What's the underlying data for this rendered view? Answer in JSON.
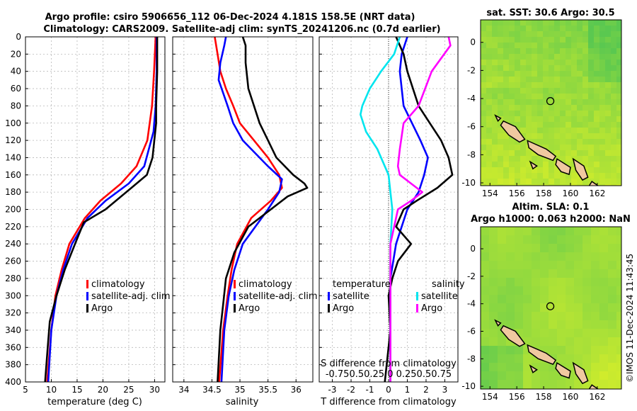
{
  "title_line1": "Argo profile: csiro 5906656_112 06-Dec-2024 4.181S 158.5E (NRT data)",
  "title_line2": "Climatology: CARS2009. Satellite-adj clim: synTS_20241206.nc (0.7d earlier)",
  "credit": "©IMOS 11-Dec-2024 11:43:45",
  "colors": {
    "red": "#ff0000",
    "blue": "#0000ff",
    "black": "#000000",
    "cyan": "#00e5ee",
    "magenta": "#ff00ff",
    "map_green": "#7ad63a",
    "map_yellow": "#c6ef2e",
    "land": "#f0c8a0"
  },
  "chart_data": [
    {
      "type": "line",
      "id": "temperature",
      "xlabel": "temperature (deg C)",
      "xlim": [
        5,
        32
      ],
      "ylim": [
        400,
        0
      ],
      "xticks": [
        "5",
        "10",
        "15",
        "20",
        "25",
        "30"
      ],
      "yticks": [
        "0",
        "20",
        "40",
        "60",
        "80",
        "100",
        "120",
        "140",
        "160",
        "180",
        "200",
        "220",
        "240",
        "260",
        "280",
        "300",
        "320",
        "340",
        "360",
        "380",
        "400"
      ],
      "legend": [
        "climatology",
        "satellite-adj. clim",
        "Argo"
      ],
      "series": [
        {
          "name": "climatology",
          "color": "red",
          "depth": [
            0,
            40,
            80,
            120,
            150,
            170,
            190,
            210,
            240,
            270,
            300,
            340,
            400
          ],
          "values": [
            30.2,
            29.9,
            29.5,
            28.6,
            26.5,
            23.5,
            19.5,
            16.5,
            13.5,
            12,
            10.8,
            10,
            9.2
          ]
        },
        {
          "name": "satellite-adj. clim",
          "color": "blue",
          "depth": [
            0,
            40,
            80,
            110,
            150,
            170,
            190,
            210,
            240,
            270,
            300,
            340,
            400
          ],
          "values": [
            30.4,
            30.4,
            30.2,
            29.8,
            28,
            25,
            20.5,
            17,
            14,
            12.3,
            11,
            10,
            9.4
          ]
        },
        {
          "name": "Argo",
          "color": "black",
          "depth": [
            0,
            40,
            80,
            100,
            140,
            160,
            175,
            200,
            215,
            240,
            270,
            300,
            330,
            360,
            400
          ],
          "values": [
            30.5,
            30.5,
            30.3,
            30.3,
            29.6,
            28.5,
            25.5,
            20.5,
            16.3,
            14.6,
            12.6,
            11,
            9.7,
            9.3,
            8.8
          ]
        }
      ]
    },
    {
      "type": "line",
      "id": "salinity",
      "xlabel": "salinity",
      "xlim": [
        33.8,
        36.3
      ],
      "ylim": [
        400,
        0
      ],
      "xticks": [
        "34",
        "34.5",
        "35",
        "35.5",
        "36"
      ],
      "legend": [
        "climatology",
        "satellite-adj. clim",
        "Argo"
      ],
      "series": [
        {
          "name": "climatology",
          "color": "red",
          "depth": [
            0,
            20,
            40,
            60,
            80,
            100,
            120,
            140,
            160,
            175,
            190,
            210,
            240,
            270,
            300,
            340,
            400
          ],
          "values": [
            34.55,
            34.6,
            34.65,
            34.75,
            34.88,
            35.0,
            35.25,
            35.5,
            35.7,
            35.75,
            35.55,
            35.2,
            34.95,
            34.85,
            34.78,
            34.7,
            34.63
          ]
        },
        {
          "name": "satellite-adj. clim",
          "color": "blue",
          "depth": [
            0,
            10,
            30,
            50,
            80,
            100,
            120,
            150,
            165,
            180,
            200,
            240,
            270,
            300,
            340,
            400
          ],
          "values": [
            34.75,
            34.72,
            34.65,
            34.62,
            34.78,
            34.88,
            35.05,
            35.5,
            35.75,
            35.7,
            35.5,
            35.05,
            34.9,
            34.8,
            34.72,
            34.67
          ],
          "note": "satellite-adj. clim"
        },
        {
          "name": "Argo",
          "color": "black",
          "depth": [
            0,
            10,
            30,
            60,
            100,
            140,
            160,
            170,
            175,
            185,
            200,
            220,
            250,
            280,
            310,
            340,
            400
          ],
          "values": [
            35.05,
            35.1,
            35.1,
            35.15,
            35.35,
            35.65,
            35.95,
            36.15,
            36.2,
            35.85,
            35.55,
            35.15,
            34.9,
            34.75,
            34.7,
            34.65,
            34.6
          ]
        }
      ]
    },
    {
      "type": "line",
      "id": "difference",
      "xlabel": "T difference from climatology",
      "top_label_title": "S difference from climatology",
      "top_ticks": "-0.750.50.25 0 0.250.50.75",
      "xlim": [
        -3.7,
        3.7
      ],
      "ylim": [
        400,
        0
      ],
      "xticks": [
        "-3",
        "-2",
        "-1",
        "0",
        "1",
        "2",
        "3"
      ],
      "legend_headers": [
        "temperature",
        "salinity"
      ],
      "legend_left": [
        "satellite",
        "Argo"
      ],
      "legend_right": [
        "satellite",
        "Argo"
      ],
      "series": [
        {
          "name": "temperature satellite",
          "color": "blue",
          "depth": [
            0,
            20,
            40,
            80,
            120,
            140,
            160,
            180,
            200,
            240,
            280,
            320,
            360,
            400
          ],
          "values": [
            1.0,
            0.7,
            0.6,
            0.8,
            1.7,
            2.1,
            1.9,
            1.6,
            1.0,
            0.4,
            0.1,
            0.1,
            0.1,
            0.1
          ]
        },
        {
          "name": "temperature Argo",
          "color": "black",
          "depth": [
            0,
            20,
            40,
            80,
            100,
            120,
            140,
            160,
            175,
            190,
            200,
            220,
            240,
            260,
            280,
            300,
            340,
            400
          ],
          "values": [
            0.4,
            0.8,
            1.0,
            1.6,
            2.2,
            2.8,
            3.2,
            3.4,
            2.6,
            1.5,
            0.8,
            0.4,
            1.2,
            0.5,
            0.2,
            0,
            0.1,
            -0.2
          ]
        },
        {
          "name": "salinity satellite",
          "color": "cyan",
          "depth": [
            0,
            20,
            40,
            60,
            80,
            90,
            110,
            130,
            160,
            180,
            200,
            240,
            300,
            360,
            400
          ],
          "values": [
            0.6,
            0.3,
            -0.4,
            -1.0,
            -1.4,
            -1.5,
            -1.2,
            -0.6,
            0,
            0.1,
            0.2,
            0.1,
            0.1,
            0.1,
            0.1
          ]
        },
        {
          "name": "salinity Argo",
          "color": "magenta",
          "depth": [
            0,
            10,
            40,
            80,
            100,
            130,
            150,
            160,
            170,
            180,
            190,
            200,
            240,
            300,
            360,
            400
          ],
          "values": [
            3.2,
            3.3,
            2.3,
            1.6,
            0.8,
            0.6,
            0.5,
            0.6,
            1.2,
            1.8,
            1.2,
            0.5,
            0.1,
            0.1,
            0.1,
            0.1
          ]
        }
      ]
    },
    {
      "type": "heatmap",
      "id": "sst_map",
      "title": "sat. SST: 30.6 Argo: 30.5",
      "xticks": [
        "154",
        "156",
        "158",
        "160",
        "162"
      ],
      "yticks": [
        "0",
        "-2",
        "-4",
        "-6",
        "-8",
        "-10"
      ],
      "xlim": [
        153.3,
        163.8
      ],
      "ylim": [
        -10.2,
        1.6
      ],
      "argo_point": [
        158.5,
        -4.181
      ]
    },
    {
      "type": "heatmap",
      "id": "sla_map",
      "title_line1": "Altim. SLA: 0.1",
      "title_line2": "Argo h1000: 0.063 h2000: NaN",
      "xticks": [
        "154",
        "156",
        "158",
        "160",
        "162"
      ],
      "yticks": [
        "0",
        "-2",
        "-4",
        "-6",
        "-8",
        "-10"
      ],
      "xlim": [
        153.3,
        163.8
      ],
      "ylim": [
        -10.2,
        1.6
      ],
      "argo_point": [
        158.5,
        -4.181
      ]
    }
  ]
}
